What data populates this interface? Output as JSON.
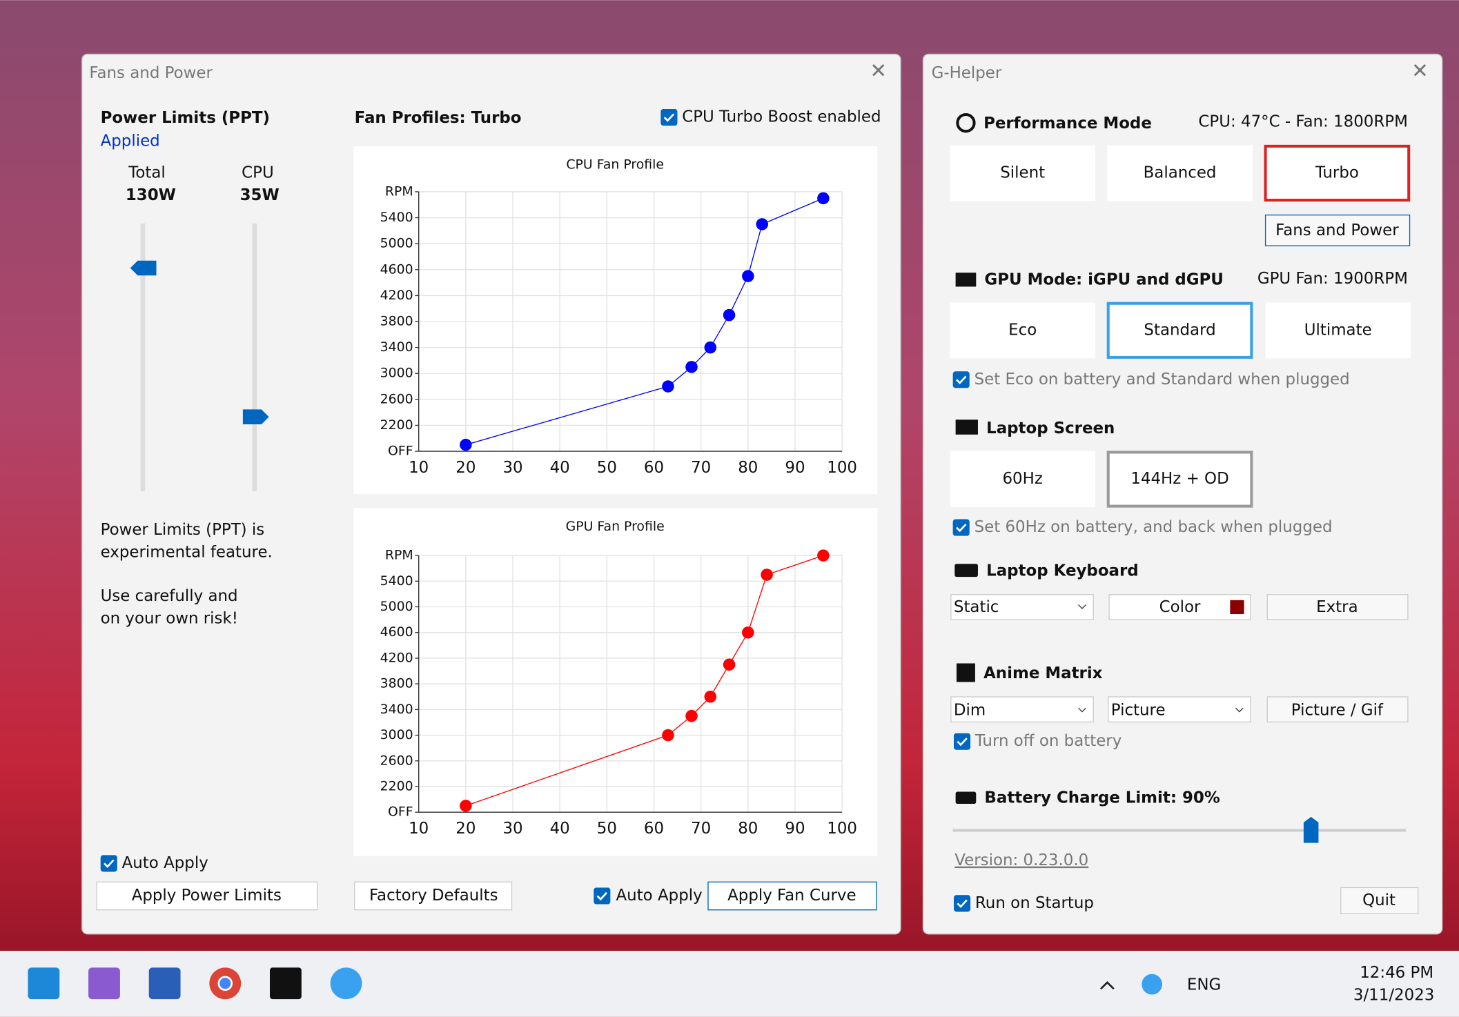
{
  "fans_window": {
    "title": "Fans and Power",
    "power": {
      "heading": "Power Limits (PPT)",
      "status": "Applied",
      "total_label": "Total",
      "total_value": "130W",
      "cpu_label": "CPU",
      "cpu_value": "35W",
      "note": [
        "Power Limits (PPT) is",
        "experimental feature.",
        "Use carefully and",
        "on your own risk!"
      ],
      "auto_apply": "Auto Apply",
      "apply_button": "Apply Power Limits"
    },
    "fans": {
      "heading": "Fan Profiles: Turbo",
      "turbo_boost": "CPU Turbo Boost enabled",
      "defaults_button": "Factory Defaults",
      "auto_apply": "Auto Apply",
      "apply_button": "Apply Fan Curve",
      "cpu_chart": {
        "type": "line",
        "title": "CPU Fan Profile",
        "color": "#0000ff",
        "xlim": [
          10,
          100
        ],
        "xticks": [
          10,
          20,
          30,
          40,
          50,
          60,
          70,
          80,
          90,
          100
        ],
        "ylim": [
          1800,
          5800
        ],
        "yticks": [
          {
            "value": 1800,
            "label": "OFF"
          },
          2200,
          2600,
          3000,
          3400,
          3800,
          4200,
          4600,
          5000,
          5400,
          {
            "value": 5800,
            "label": "RPM"
          }
        ],
        "grid": true,
        "x": [
          20,
          63,
          68,
          72,
          76,
          80,
          83,
          96
        ],
        "values": [
          1900,
          2800,
          3100,
          3400,
          3900,
          4500,
          5300,
          5700
        ]
      },
      "gpu_chart": {
        "type": "line",
        "title": "GPU Fan Profile",
        "color": "#ff0000",
        "xlim": [
          10,
          100
        ],
        "xticks": [
          10,
          20,
          30,
          40,
          50,
          60,
          70,
          80,
          90,
          100
        ],
        "ylim": [
          1800,
          5800
        ],
        "yticks": [
          {
            "value": 1800,
            "label": "OFF"
          },
          2200,
          2600,
          3000,
          3400,
          3800,
          4200,
          4600,
          5000,
          5400,
          {
            "value": 5800,
            "label": "RPM"
          }
        ],
        "grid": true,
        "x": [
          20,
          63,
          68,
          72,
          76,
          80,
          84,
          96
        ],
        "values": [
          1900,
          3000,
          3300,
          3600,
          4100,
          4600,
          5500,
          5800
        ]
      }
    }
  },
  "ghelper": {
    "title": "G-Helper",
    "performance": {
      "heading": "Performance Mode",
      "status": "CPU: 47°C -  Fan: 1800RPM",
      "modes": [
        "Silent",
        "Balanced",
        "Turbo"
      ],
      "fans_button": "Fans and Power"
    },
    "gpu": {
      "heading": "GPU Mode: iGPU and dGPU",
      "status": "GPU Fan: 1900RPM",
      "modes": [
        "Eco",
        "Standard",
        "Ultimate"
      ],
      "option": "Set Eco on battery and Standard when plugged"
    },
    "screen": {
      "heading": "Laptop Screen",
      "modes": [
        "60Hz",
        "144Hz + OD"
      ],
      "option": "Set 60Hz on battery, and back when plugged"
    },
    "keyboard": {
      "heading": "Laptop Keyboard",
      "mode": "Static",
      "color_button": "Color",
      "extra_button": "Extra"
    },
    "anime": {
      "heading": "Anime Matrix",
      "brightness": "Dim",
      "mode": "Picture",
      "button": "Picture / Gif",
      "option": "Turn off on battery"
    },
    "battery": {
      "heading": "Battery Charge Limit: 90%"
    },
    "version": "Version: 0.23.0.0",
    "startup": "Run on Startup",
    "quit": "Quit"
  },
  "taskbar": {
    "language": "ENG",
    "time": "12:46 PM",
    "date": "3/11/2023"
  }
}
